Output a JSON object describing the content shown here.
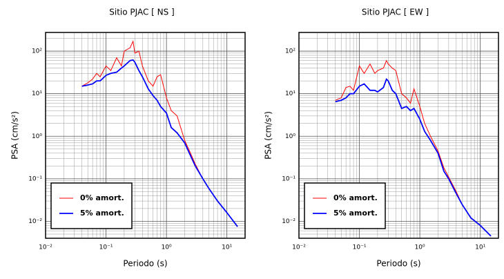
{
  "chart_data": [
    {
      "type": "line",
      "title": "Sitio PJAC [ NS ]",
      "xlabel": "Periodo (s)",
      "ylabel": "PSA (cm/s²)",
      "xscale": "log",
      "yscale": "log",
      "grid": true,
      "legend": "lower left",
      "xlim": [
        0.01,
        20
      ],
      "ylim": [
        0.004,
        275
      ],
      "xticks": [
        {
          "value": 0.01,
          "label": "10⁻²"
        },
        {
          "value": 0.1,
          "label": "10⁻¹"
        },
        {
          "value": 1,
          "label": "10⁰"
        },
        {
          "value": 10,
          "label": "10¹"
        }
      ],
      "yticks": [
        {
          "value": 0.01,
          "label": "10⁻²"
        },
        {
          "value": 0.1,
          "label": "10⁻¹"
        },
        {
          "value": 1,
          "label": "10⁰"
        },
        {
          "value": 10,
          "label": "10¹"
        },
        {
          "value": 100,
          "label": "10²"
        }
      ],
      "x": [
        0.04,
        0.05,
        0.06,
        0.07,
        0.08,
        0.1,
        0.12,
        0.15,
        0.18,
        0.2,
        0.25,
        0.28,
        0.3,
        0.35,
        0.4,
        0.5,
        0.6,
        0.7,
        0.8,
        1.0,
        1.2,
        1.5,
        2,
        2.5,
        3,
        4,
        5,
        7,
        10,
        15
      ],
      "series": [
        {
          "name": "0% amort.",
          "color": "#ff0000",
          "width": 1,
          "values": [
            15,
            18,
            22,
            30,
            25,
            45,
            35,
            70,
            45,
            100,
            120,
            170,
            90,
            100,
            45,
            20,
            15,
            25,
            28,
            8,
            4,
            3,
            0.8,
            0.4,
            0.22,
            0.1,
            0.06,
            0.03,
            0.016,
            0.0075
          ]
        },
        {
          "name": "5% amort.",
          "color": "#0000ff",
          "width": 1.8,
          "values": [
            15,
            16,
            17,
            20,
            20,
            27,
            30,
            32,
            40,
            45,
            60,
            62,
            55,
            35,
            25,
            13,
            9,
            7,
            5,
            3.5,
            1.6,
            1.2,
            0.7,
            0.35,
            0.2,
            0.1,
            0.06,
            0.03,
            0.016,
            0.0075
          ]
        }
      ]
    },
    {
      "type": "line",
      "title": "Sitio PJAC [ EW ]",
      "xlabel": "Periodo (s)",
      "ylabel": "PSA (cm/s²)",
      "xscale": "log",
      "yscale": "log",
      "grid": true,
      "legend": "lower left",
      "xlim": [
        0.01,
        20
      ],
      "ylim": [
        0.004,
        275
      ],
      "xticks": [
        {
          "value": 0.01,
          "label": "10⁻²"
        },
        {
          "value": 0.1,
          "label": "10⁻¹"
        },
        {
          "value": 1,
          "label": "10⁰"
        },
        {
          "value": 10,
          "label": "10¹"
        }
      ],
      "yticks": [
        {
          "value": 0.01,
          "label": "10⁻²"
        },
        {
          "value": 0.1,
          "label": "10⁻¹"
        },
        {
          "value": 1,
          "label": "10⁰"
        },
        {
          "value": 10,
          "label": "10¹"
        },
        {
          "value": 100,
          "label": "10²"
        }
      ],
      "x": [
        0.04,
        0.05,
        0.06,
        0.07,
        0.08,
        0.1,
        0.12,
        0.15,
        0.18,
        0.2,
        0.25,
        0.28,
        0.3,
        0.35,
        0.4,
        0.5,
        0.6,
        0.7,
        0.8,
        1.0,
        1.2,
        1.5,
        2,
        2.5,
        3,
        4,
        5,
        7,
        10,
        15
      ],
      "series": [
        {
          "name": "0% amort.",
          "color": "#ff0000",
          "width": 1,
          "values": [
            7,
            8,
            14,
            15,
            12,
            45,
            30,
            50,
            30,
            35,
            40,
            60,
            50,
            40,
            35,
            10,
            8,
            6,
            13,
            5,
            2,
            1,
            0.45,
            0.18,
            0.11,
            0.05,
            0.025,
            0.012,
            0.008,
            0.0045
          ]
        },
        {
          "name": "5% amort.",
          "color": "#0000ff",
          "width": 1.8,
          "values": [
            6.5,
            7,
            8,
            10,
            10,
            15,
            17,
            12,
            12,
            11,
            14,
            22,
            20,
            12,
            10,
            4.5,
            5,
            4,
            4.5,
            2.5,
            1.3,
            0.8,
            0.4,
            0.15,
            0.1,
            0.045,
            0.025,
            0.012,
            0.008,
            0.0045
          ]
        }
      ]
    }
  ]
}
